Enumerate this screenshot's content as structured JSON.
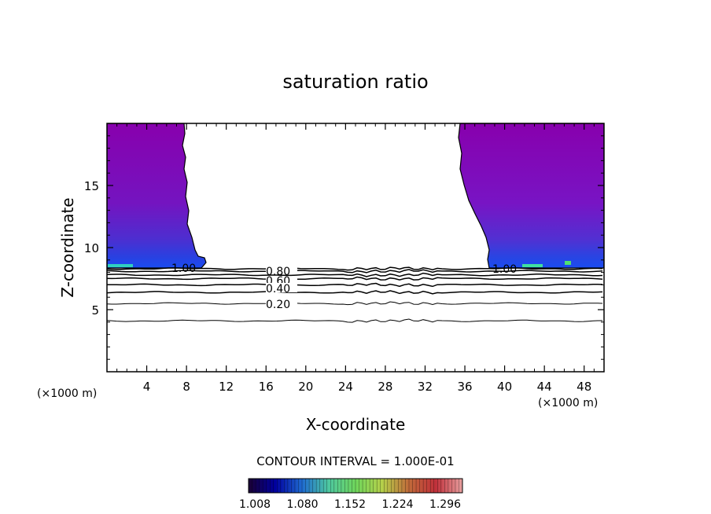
{
  "chart_data": {
    "type": "contour",
    "title": "saturation ratio",
    "xlabel": "X-coordinate",
    "ylabel": "Z-coordinate",
    "x_unit_label": "(×1000 m)",
    "xlim": [
      0,
      50
    ],
    "ylim": [
      0,
      20
    ],
    "x_ticks": [
      "4",
      "8",
      "12",
      "16",
      "20",
      "24",
      "28",
      "32",
      "36",
      "40",
      "44",
      "48"
    ],
    "y_ticks": [
      "5",
      "10",
      "15"
    ],
    "contour_interval_label": "CONTOUR INTERVAL = 1.000E-01",
    "contour_labels": [
      "0.80",
      "0.60",
      "0.40",
      "0.20",
      "1.00",
      "1.00"
    ],
    "colorbar_ticks": [
      "1.008",
      "1.080",
      "1.152",
      "1.224",
      "1.296"
    ],
    "contour_lines_y": [
      4.1,
      5.5,
      6.4,
      7.0,
      7.5,
      7.8,
      8.1,
      8.3
    ],
    "colorbar_colors": [
      "#1a0033",
      "#0000a0",
      "#1f6bd0",
      "#4ec8a0",
      "#6fd65c",
      "#b5d04a",
      "#c06a3a",
      "#c0303a",
      "#e8a0a0"
    ],
    "fill_colors": {
      "upper": "#8a00b0",
      "mid": "#7a1ec8",
      "deep": "#4a3ad8",
      "base": "#1e40e8",
      "cyan": "#30d0c0"
    }
  }
}
